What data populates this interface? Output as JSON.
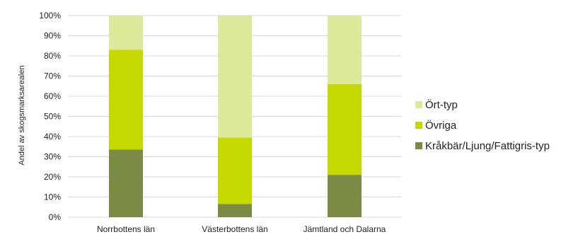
{
  "chart_data": {
    "type": "bar",
    "stacked": true,
    "percent": true,
    "ylabel": "Andel av skogsmarksarealen",
    "xlabel": "",
    "ylim": [
      0,
      100
    ],
    "yticks": [
      "0%",
      "10%",
      "20%",
      "30%",
      "40%",
      "50%",
      "60%",
      "70%",
      "80%",
      "90%",
      "100%"
    ],
    "grid": true,
    "legend_position": "right",
    "categories": [
      "Norrbottens län",
      "Västerbottens län",
      "Jämtland och Dalarna"
    ],
    "series": [
      {
        "name": "Kråkbär/Ljung/Fattigris-typ",
        "color": "#7b8a44",
        "values": [
          33.5,
          6.5,
          21
        ]
      },
      {
        "name": "Övriga",
        "color": "#c5d800",
        "values": [
          49.5,
          33,
          45
        ]
      },
      {
        "name": "Ört-typ",
        "color": "#dce99a",
        "values": [
          17,
          60.5,
          34
        ]
      }
    ]
  }
}
